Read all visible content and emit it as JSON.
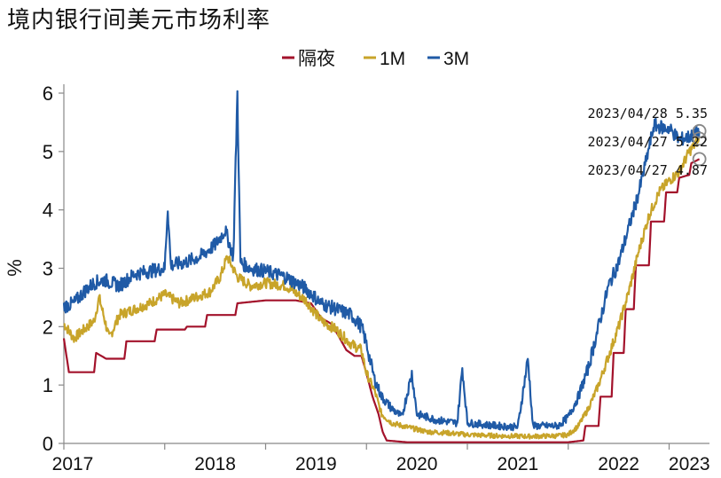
{
  "title": "境内银行间美元市场利率",
  "chart_data": {
    "type": "line",
    "title": "境内银行间美元市场利率",
    "xlabel": "",
    "ylabel": "%",
    "ylim": [
      0,
      6
    ],
    "yticks": [
      0,
      1,
      2,
      3,
      4,
      5,
      6
    ],
    "xlim": [
      2017.0,
      2023.4
    ],
    "xticks": [
      "2017",
      "2018",
      "2019",
      "2020",
      "2021",
      "2022",
      "2023"
    ],
    "legend_position": "top-center",
    "grid": false,
    "series": [
      {
        "name": "隔夜",
        "color": "#a3122b",
        "points": [
          [
            2017.0,
            1.8
          ],
          [
            2017.05,
            1.22
          ],
          [
            2017.3,
            1.22
          ],
          [
            2017.32,
            1.55
          ],
          [
            2017.42,
            1.45
          ],
          [
            2017.6,
            1.45
          ],
          [
            2017.62,
            1.75
          ],
          [
            2017.9,
            1.75
          ],
          [
            2017.92,
            1.95
          ],
          [
            2018.2,
            1.95
          ],
          [
            2018.22,
            2.0
          ],
          [
            2018.4,
            2.0
          ],
          [
            2018.42,
            2.2
          ],
          [
            2018.7,
            2.2
          ],
          [
            2018.72,
            2.4
          ],
          [
            2019.0,
            2.45
          ],
          [
            2019.3,
            2.45
          ],
          [
            2019.45,
            2.4
          ],
          [
            2019.55,
            2.15
          ],
          [
            2019.65,
            2.05
          ],
          [
            2019.72,
            1.85
          ],
          [
            2019.8,
            1.6
          ],
          [
            2019.88,
            1.5
          ],
          [
            2019.95,
            1.5
          ],
          [
            2020.0,
            1.2
          ],
          [
            2020.06,
            0.8
          ],
          [
            2020.12,
            0.5
          ],
          [
            2020.16,
            0.2
          ],
          [
            2020.2,
            0.05
          ],
          [
            2020.4,
            0.02
          ],
          [
            2021.0,
            0.02
          ],
          [
            2021.5,
            0.02
          ],
          [
            2021.95,
            0.02
          ],
          [
            2022.0,
            0.02
          ],
          [
            2022.15,
            0.05
          ],
          [
            2022.17,
            0.3
          ],
          [
            2022.3,
            0.3
          ],
          [
            2022.32,
            0.8
          ],
          [
            2022.43,
            0.8
          ],
          [
            2022.45,
            1.55
          ],
          [
            2022.55,
            1.55
          ],
          [
            2022.57,
            2.3
          ],
          [
            2022.65,
            2.3
          ],
          [
            2022.67,
            3.05
          ],
          [
            2022.8,
            3.05
          ],
          [
            2022.82,
            3.8
          ],
          [
            2022.95,
            3.8
          ],
          [
            2022.97,
            4.3
          ],
          [
            2023.08,
            4.3
          ],
          [
            2023.1,
            4.55
          ],
          [
            2023.2,
            4.6
          ],
          [
            2023.22,
            4.8
          ],
          [
            2023.3,
            4.87
          ]
        ]
      },
      {
        "name": "1M",
        "color": "#c8a42a",
        "points": [
          [
            2017.0,
            2.05
          ],
          [
            2017.1,
            1.8
          ],
          [
            2017.2,
            1.95
          ],
          [
            2017.3,
            2.1
          ],
          [
            2017.35,
            2.5
          ],
          [
            2017.45,
            1.8
          ],
          [
            2017.55,
            2.2
          ],
          [
            2017.7,
            2.3
          ],
          [
            2017.85,
            2.4
          ],
          [
            2018.0,
            2.55
          ],
          [
            2018.15,
            2.4
          ],
          [
            2018.3,
            2.5
          ],
          [
            2018.45,
            2.6
          ],
          [
            2018.55,
            2.85
          ],
          [
            2018.62,
            3.2
          ],
          [
            2018.72,
            2.85
          ],
          [
            2018.85,
            2.7
          ],
          [
            2019.0,
            2.75
          ],
          [
            2019.2,
            2.7
          ],
          [
            2019.4,
            2.45
          ],
          [
            2019.55,
            2.1
          ],
          [
            2019.7,
            1.95
          ],
          [
            2019.85,
            1.7
          ],
          [
            2019.95,
            1.6
          ],
          [
            2020.0,
            1.2
          ],
          [
            2020.08,
            0.9
          ],
          [
            2020.15,
            0.5
          ],
          [
            2020.25,
            0.35
          ],
          [
            2020.4,
            0.28
          ],
          [
            2020.6,
            0.2
          ],
          [
            2020.8,
            0.18
          ],
          [
            2021.0,
            0.15
          ],
          [
            2021.3,
            0.13
          ],
          [
            2021.6,
            0.12
          ],
          [
            2021.9,
            0.13
          ],
          [
            2022.0,
            0.15
          ],
          [
            2022.1,
            0.3
          ],
          [
            2022.2,
            0.6
          ],
          [
            2022.3,
            1.0
          ],
          [
            2022.4,
            1.5
          ],
          [
            2022.5,
            2.0
          ],
          [
            2022.6,
            2.6
          ],
          [
            2022.7,
            3.3
          ],
          [
            2022.8,
            3.9
          ],
          [
            2022.9,
            4.3
          ],
          [
            2023.0,
            4.5
          ],
          [
            2023.1,
            4.65
          ],
          [
            2023.2,
            5.0
          ],
          [
            2023.3,
            5.22
          ]
        ]
      },
      {
        "name": "3M",
        "color": "#1f5aa6",
        "points": [
          [
            2017.0,
            2.35
          ],
          [
            2017.1,
            2.4
          ],
          [
            2017.2,
            2.6
          ],
          [
            2017.3,
            2.75
          ],
          [
            2017.4,
            2.8
          ],
          [
            2017.55,
            2.7
          ],
          [
            2017.7,
            2.9
          ],
          [
            2017.85,
            2.95
          ],
          [
            2018.0,
            3.0
          ],
          [
            2018.03,
            4.05
          ],
          [
            2018.06,
            3.05
          ],
          [
            2018.2,
            3.1
          ],
          [
            2018.35,
            3.2
          ],
          [
            2018.5,
            3.4
          ],
          [
            2018.6,
            3.65
          ],
          [
            2018.68,
            3.2
          ],
          [
            2018.72,
            6.0
          ],
          [
            2018.75,
            3.1
          ],
          [
            2018.85,
            3.0
          ],
          [
            2019.0,
            2.95
          ],
          [
            2019.2,
            2.85
          ],
          [
            2019.4,
            2.65
          ],
          [
            2019.55,
            2.4
          ],
          [
            2019.7,
            2.3
          ],
          [
            2019.85,
            2.2
          ],
          [
            2019.95,
            2.0
          ],
          [
            2020.0,
            1.7
          ],
          [
            2020.08,
            1.1
          ],
          [
            2020.15,
            0.8
          ],
          [
            2020.25,
            0.6
          ],
          [
            2020.35,
            0.45
          ],
          [
            2020.45,
            1.2
          ],
          [
            2020.5,
            0.5
          ],
          [
            2020.7,
            0.4
          ],
          [
            2020.9,
            0.35
          ],
          [
            2020.95,
            1.3
          ],
          [
            2021.0,
            0.35
          ],
          [
            2021.3,
            0.3
          ],
          [
            2021.5,
            0.28
          ],
          [
            2021.6,
            1.45
          ],
          [
            2021.65,
            0.3
          ],
          [
            2021.9,
            0.3
          ],
          [
            2022.0,
            0.45
          ],
          [
            2022.1,
            0.8
          ],
          [
            2022.2,
            1.3
          ],
          [
            2022.3,
            2.0
          ],
          [
            2022.4,
            2.7
          ],
          [
            2022.5,
            3.1
          ],
          [
            2022.6,
            3.7
          ],
          [
            2022.7,
            4.3
          ],
          [
            2022.78,
            4.9
          ],
          [
            2022.85,
            5.45
          ],
          [
            2022.95,
            5.4
          ],
          [
            2023.0,
            5.4
          ],
          [
            2023.1,
            5.2
          ],
          [
            2023.2,
            5.25
          ],
          [
            2023.3,
            5.35
          ]
        ]
      }
    ],
    "annotations": [
      {
        "text": "2023/04/28  5.35",
        "series": "3M",
        "x": 2023.3,
        "y": 5.35
      },
      {
        "text": "2023/04/27  5.22",
        "series": "1M",
        "x": 2023.3,
        "y": 5.22
      },
      {
        "text": "2023/04/27  4.87",
        "series": "隔夜",
        "x": 2023.3,
        "y": 4.87
      }
    ]
  }
}
